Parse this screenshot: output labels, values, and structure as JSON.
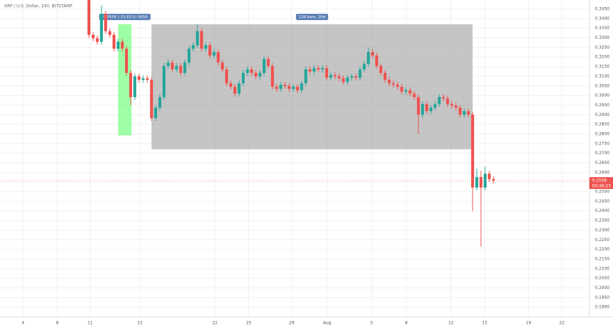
{
  "chart_data": {
    "type": "candlestick",
    "title": "XRP / U.S. Dollar, 240, BITSTAMP",
    "up_color": "#26a69a",
    "down_color": "#ef5350",
    "grid": true,
    "ylim": [
      0.185,
      0.3497
    ],
    "xlim": [
      -21.33,
      120
    ],
    "yticks": [
      {
        "value": 0.345,
        "label": "0.3450"
      },
      {
        "value": 0.34,
        "label": "0.3400"
      },
      {
        "value": 0.335,
        "label": "0.3350"
      },
      {
        "value": 0.33,
        "label": "0.3300"
      },
      {
        "value": 0.325,
        "label": "0.3250"
      },
      {
        "value": 0.32,
        "label": "0.3200"
      },
      {
        "value": 0.315,
        "label": "0.3150"
      },
      {
        "value": 0.31,
        "label": "0.3100"
      },
      {
        "value": 0.305,
        "label": "0.3050"
      },
      {
        "value": 0.3,
        "label": "0.3000"
      },
      {
        "value": 0.295,
        "label": "0.2950"
      },
      {
        "value": 0.29,
        "label": "0.2900"
      },
      {
        "value": 0.285,
        "label": "0.2850"
      },
      {
        "value": 0.28,
        "label": "0.2800"
      },
      {
        "value": 0.275,
        "label": "0.2750"
      },
      {
        "value": 0.27,
        "label": "0.2700"
      },
      {
        "value": 0.265,
        "label": "0.2650"
      },
      {
        "value": 0.26,
        "label": "0.2600"
      },
      {
        "value": 0.255,
        "label": "0.2550"
      },
      {
        "value": 0.25,
        "label": "0.2500"
      },
      {
        "value": 0.245,
        "label": "0.2450"
      },
      {
        "value": 0.24,
        "label": "0.2400"
      },
      {
        "value": 0.235,
        "label": "0.2350"
      },
      {
        "value": 0.23,
        "label": "0.2300"
      },
      {
        "value": 0.225,
        "label": "0.2250"
      },
      {
        "value": 0.22,
        "label": "0.2200"
      },
      {
        "value": 0.215,
        "label": "0.2150"
      },
      {
        "value": 0.21,
        "label": "0.2100"
      },
      {
        "value": 0.205,
        "label": "0.2050"
      },
      {
        "value": 0.2,
        "label": "0.2000"
      },
      {
        "value": 0.195,
        "label": "0.1950"
      },
      {
        "value": 0.19,
        "label": "0.1900"
      }
    ],
    "xticks": [
      {
        "value": -15.8,
        "label": "4"
      },
      {
        "value": -7.6,
        "label": "8"
      },
      {
        "value": 0.3,
        "label": "11"
      },
      {
        "value": 12.2,
        "label": "15"
      },
      {
        "value": 30.2,
        "label": "22"
      },
      {
        "value": 38.3,
        "label": "25"
      },
      {
        "value": 48.6,
        "label": "29"
      },
      {
        "value": 57.1,
        "label": "Aug"
      },
      {
        "value": 67.8,
        "label": "5"
      },
      {
        "value": 76.1,
        "label": "8"
      },
      {
        "value": 86.8,
        "label": "12"
      },
      {
        "value": 94.9,
        "label": "15"
      },
      {
        "value": 105.4,
        "label": "19"
      },
      {
        "value": 113.4,
        "label": "22"
      }
    ],
    "ohlc": [
      [
        0.3497,
        0.351,
        0.33,
        0.3316
      ],
      [
        0.3316,
        0.3331,
        0.3283,
        0.3298
      ],
      [
        0.3298,
        0.3313,
        0.3265,
        0.328
      ],
      [
        0.328,
        0.347,
        0.3265,
        0.3425
      ],
      [
        0.3425,
        0.344,
        0.332,
        0.3335
      ],
      [
        0.3335,
        0.335,
        0.3301,
        0.3316
      ],
      [
        0.3316,
        0.3331,
        0.3229,
        0.3244
      ],
      [
        0.3244,
        0.3295,
        0.3229,
        0.328
      ],
      [
        0.328,
        0.3295,
        0.3229,
        0.3244
      ],
      [
        0.3244,
        0.3259,
        0.3103,
        0.3118
      ],
      [
        0.3118,
        0.3133,
        0.295,
        0.2992
      ],
      [
        0.2992,
        0.3115,
        0.2977,
        0.31
      ],
      [
        0.31,
        0.3115,
        0.3067,
        0.3082
      ],
      [
        0.3082,
        0.3105,
        0.3067,
        0.309
      ],
      [
        0.309,
        0.3105,
        0.3067,
        0.3082
      ],
      [
        0.3082,
        0.3097,
        0.2868,
        0.2883
      ],
      [
        0.2883,
        0.2952,
        0.2868,
        0.2937
      ],
      [
        0.2937,
        0.3007,
        0.2922,
        0.2992
      ],
      [
        0.2992,
        0.3169,
        0.2977,
        0.3154
      ],
      [
        0.3154,
        0.3187,
        0.3139,
        0.3172
      ],
      [
        0.3172,
        0.3187,
        0.3121,
        0.3136
      ],
      [
        0.3136,
        0.3169,
        0.3121,
        0.3154
      ],
      [
        0.3154,
        0.3169,
        0.3103,
        0.3118
      ],
      [
        0.3118,
        0.3187,
        0.3103,
        0.3172
      ],
      [
        0.3172,
        0.3259,
        0.3157,
        0.3244
      ],
      [
        0.3244,
        0.3277,
        0.3229,
        0.3262
      ],
      [
        0.3262,
        0.337,
        0.3247,
        0.3335
      ],
      [
        0.3335,
        0.335,
        0.3229,
        0.3244
      ],
      [
        0.3244,
        0.3277,
        0.3229,
        0.3262
      ],
      [
        0.3262,
        0.3277,
        0.3193,
        0.3208
      ],
      [
        0.3208,
        0.3241,
        0.3193,
        0.3226
      ],
      [
        0.3226,
        0.3241,
        0.3157,
        0.3172
      ],
      [
        0.3172,
        0.3187,
        0.3121,
        0.3136
      ],
      [
        0.3136,
        0.3151,
        0.3049,
        0.3064
      ],
      [
        0.3064,
        0.3079,
        0.3031,
        0.3046
      ],
      [
        0.3046,
        0.3061,
        0.2995,
        0.301
      ],
      [
        0.301,
        0.3079,
        0.2995,
        0.3064
      ],
      [
        0.3064,
        0.3133,
        0.3049,
        0.3118
      ],
      [
        0.3118,
        0.3151,
        0.3103,
        0.3136
      ],
      [
        0.3136,
        0.3151,
        0.3103,
        0.3118
      ],
      [
        0.3118,
        0.3133,
        0.3085,
        0.31
      ],
      [
        0.31,
        0.3133,
        0.3085,
        0.3118
      ],
      [
        0.3118,
        0.3205,
        0.3103,
        0.319
      ],
      [
        0.319,
        0.3205,
        0.3139,
        0.3154
      ],
      [
        0.3154,
        0.3169,
        0.3031,
        0.3046
      ],
      [
        0.3046,
        0.3061,
        0.302,
        0.3035
      ],
      [
        0.3035,
        0.3072,
        0.302,
        0.3057
      ],
      [
        0.3057,
        0.3072,
        0.3035,
        0.305
      ],
      [
        0.305,
        0.3065,
        0.302,
        0.3035
      ],
      [
        0.3035,
        0.3061,
        0.302,
        0.3046
      ],
      [
        0.3046,
        0.3061,
        0.3013,
        0.3028
      ],
      [
        0.3028,
        0.3079,
        0.3013,
        0.3064
      ],
      [
        0.3064,
        0.3151,
        0.3049,
        0.3136
      ],
      [
        0.3136,
        0.3151,
        0.311,
        0.3125
      ],
      [
        0.3125,
        0.3158,
        0.311,
        0.3143
      ],
      [
        0.3143,
        0.3158,
        0.3121,
        0.3136
      ],
      [
        0.3136,
        0.3158,
        0.3121,
        0.3143
      ],
      [
        0.3143,
        0.3158,
        0.3078,
        0.3093
      ],
      [
        0.3093,
        0.3122,
        0.3078,
        0.3107
      ],
      [
        0.3107,
        0.3122,
        0.3085,
        0.31
      ],
      [
        0.31,
        0.3115,
        0.3075,
        0.309
      ],
      [
        0.309,
        0.3105,
        0.3056,
        0.3071
      ],
      [
        0.3071,
        0.3108,
        0.3056,
        0.3093
      ],
      [
        0.3093,
        0.3115,
        0.3078,
        0.31
      ],
      [
        0.31,
        0.3115,
        0.3078,
        0.3093
      ],
      [
        0.3093,
        0.3151,
        0.3078,
        0.3136
      ],
      [
        0.3136,
        0.318,
        0.3121,
        0.3165
      ],
      [
        0.3165,
        0.325,
        0.315,
        0.3226
      ],
      [
        0.3226,
        0.3241,
        0.3193,
        0.3208
      ],
      [
        0.3208,
        0.3223,
        0.3139,
        0.3154
      ],
      [
        0.3154,
        0.3169,
        0.3103,
        0.3118
      ],
      [
        0.3118,
        0.3133,
        0.3067,
        0.3082
      ],
      [
        0.3082,
        0.3097,
        0.3049,
        0.3064
      ],
      [
        0.3064,
        0.3079,
        0.3042,
        0.3057
      ],
      [
        0.3057,
        0.3072,
        0.3031,
        0.3046
      ],
      [
        0.3046,
        0.3061,
        0.3006,
        0.3021
      ],
      [
        0.3021,
        0.3043,
        0.3006,
        0.3028
      ],
      [
        0.3028,
        0.3043,
        0.2995,
        0.301
      ],
      [
        0.301,
        0.3025,
        0.2977,
        0.2992
      ],
      [
        0.2992,
        0.3007,
        0.28,
        0.2901
      ],
      [
        0.2901,
        0.2971,
        0.2886,
        0.2956
      ],
      [
        0.2956,
        0.2971,
        0.2904,
        0.2919
      ],
      [
        0.2919,
        0.2952,
        0.2904,
        0.2937
      ],
      [
        0.2937,
        0.2971,
        0.2922,
        0.2956
      ],
      [
        0.2956,
        0.3007,
        0.2941,
        0.2992
      ],
      [
        0.2992,
        0.3007,
        0.297,
        0.2985
      ],
      [
        0.2985,
        0.3,
        0.2941,
        0.2956
      ],
      [
        0.2956,
        0.2971,
        0.2933,
        0.2948
      ],
      [
        0.2948,
        0.2963,
        0.2922,
        0.2937
      ],
      [
        0.2937,
        0.2952,
        0.2886,
        0.2901
      ],
      [
        0.2901,
        0.2934,
        0.2886,
        0.2919
      ],
      [
        0.2919,
        0.2934,
        0.2886,
        0.2901
      ],
      [
        0.2901,
        0.2916,
        0.24,
        0.2522
      ],
      [
        0.2522,
        0.262,
        0.2507,
        0.2576
      ],
      [
        0.2576,
        0.261,
        0.2215,
        0.2522
      ],
      [
        0.2522,
        0.263,
        0.2507,
        0.2594
      ],
      [
        0.2594,
        0.2609,
        0.2551,
        0.2566
      ],
      [
        0.2566,
        0.2581,
        0.2543,
        0.2558
      ]
    ],
    "last_price": {
      "value": 0.2558,
      "label": "0.2558"
    },
    "countdown": "00:46:23",
    "annotations": [
      {
        "label": "-0.0556 (-15.61%) 5056",
        "color": "#5dff6b",
        "x": [
          7,
          10.2
        ],
        "y": [
          0.3371,
          0.2793
        ]
      },
      {
        "label": "126 bars, 20d",
        "color": "#9e9e9e",
        "x": [
          15,
          92
        ],
        "y": [
          0.3371,
          0.2721
        ]
      }
    ]
  }
}
